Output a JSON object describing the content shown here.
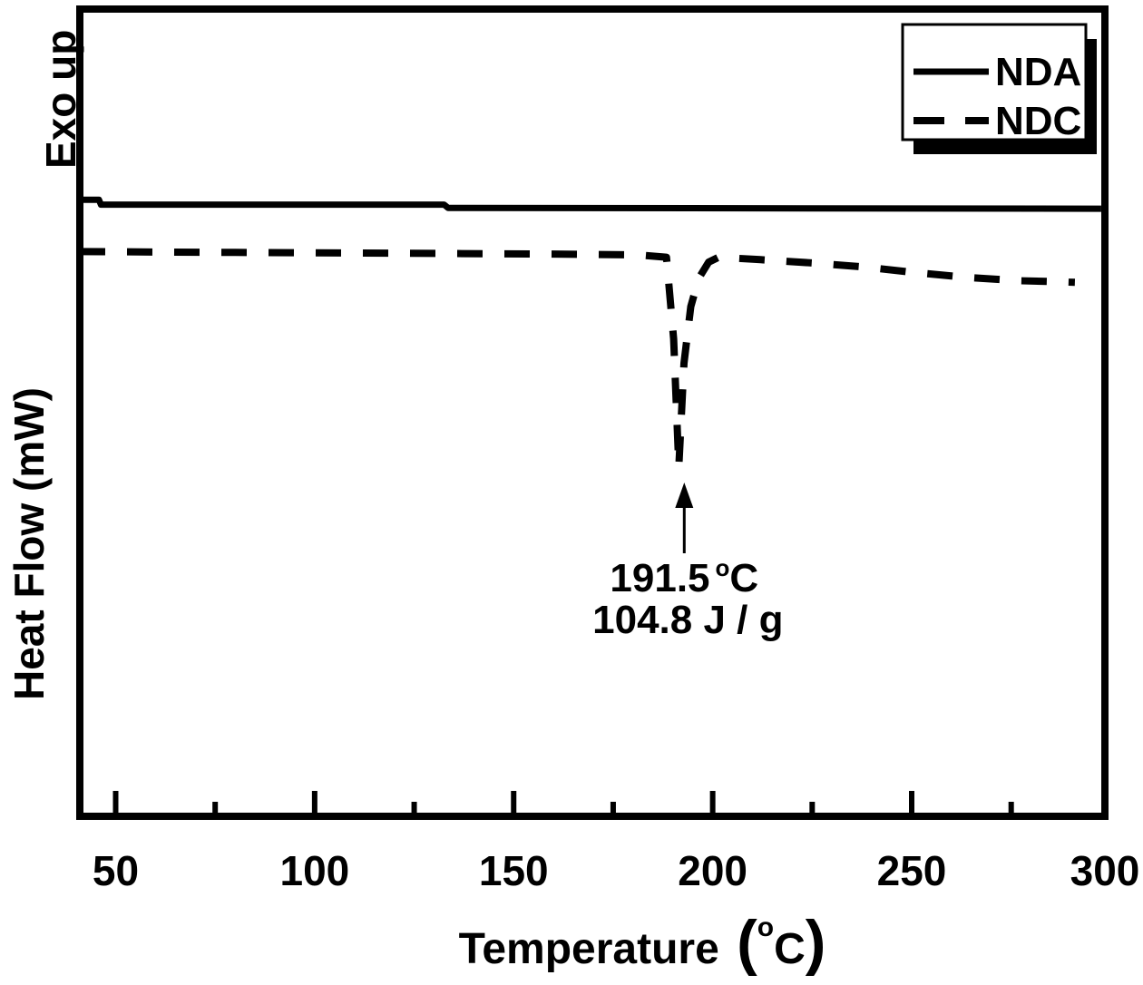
{
  "figure": {
    "exo_up": "Exo up",
    "ylabel": "Heat Flow (mW)",
    "xlabel": {
      "text": "Temperature ",
      "paren_open": "(",
      "degree": "o",
      "unit": "C",
      "paren_close": ")"
    }
  },
  "legend": {
    "position": "top-right",
    "items": [
      {
        "label": "NDA",
        "line_style": "solid"
      },
      {
        "label": "NDC",
        "line_style": "dashed"
      }
    ]
  },
  "annotation": {
    "peak_value": "191.5",
    "degree": "o",
    "unit": "C",
    "enthalpy": "104.8 J / g"
  },
  "colors": {
    "foreground": "#000000",
    "background": "#ffffff"
  },
  "chart_data": {
    "type": "line",
    "title": "",
    "xlabel": "Temperature (°C)",
    "ylabel": "Heat Flow (mW)",
    "orientation_note": "Exo up",
    "grid": false,
    "legend_position": "top-right",
    "xlim": [
      41,
      299
    ],
    "ylim": [
      0,
      10
    ],
    "y_axis_unlabeled": true,
    "x_ticks_major": [
      50,
      100,
      150,
      200,
      250,
      300
    ],
    "x_ticks_minor": [
      75,
      125,
      175,
      225,
      275
    ],
    "series": [
      {
        "name": "NDA",
        "line_style": "solid",
        "color": "#000000",
        "points": [
          [
            41,
            7.62
          ],
          [
            45.8,
            7.62
          ],
          [
            46.3,
            7.56
          ],
          [
            132.5,
            7.56
          ],
          [
            133.5,
            7.52
          ],
          [
            297.6,
            7.51
          ]
        ]
      },
      {
        "name": "NDC",
        "line_style": "dashed",
        "color": "#000000",
        "points": [
          [
            41,
            6.98
          ],
          [
            80,
            6.97
          ],
          [
            120,
            6.96
          ],
          [
            160,
            6.95
          ],
          [
            181,
            6.94
          ],
          [
            188.4,
            6.91
          ],
          [
            190.2,
            5.9
          ],
          [
            191.5,
            4.32
          ],
          [
            192.8,
            5.6
          ],
          [
            194.5,
            6.3
          ],
          [
            196.5,
            6.65
          ],
          [
            199,
            6.85
          ],
          [
            201.5,
            6.91
          ],
          [
            212,
            6.88
          ],
          [
            225,
            6.84
          ],
          [
            238,
            6.79
          ],
          [
            251,
            6.72
          ],
          [
            264,
            6.66
          ],
          [
            277,
            6.62
          ],
          [
            285,
            6.61
          ],
          [
            291,
            6.6
          ]
        ]
      }
    ],
    "peak_annotation": {
      "series": "NDC",
      "type": "endothermic",
      "temperature_c": 191.5,
      "enthalpy_j_per_g": 104.8
    }
  }
}
